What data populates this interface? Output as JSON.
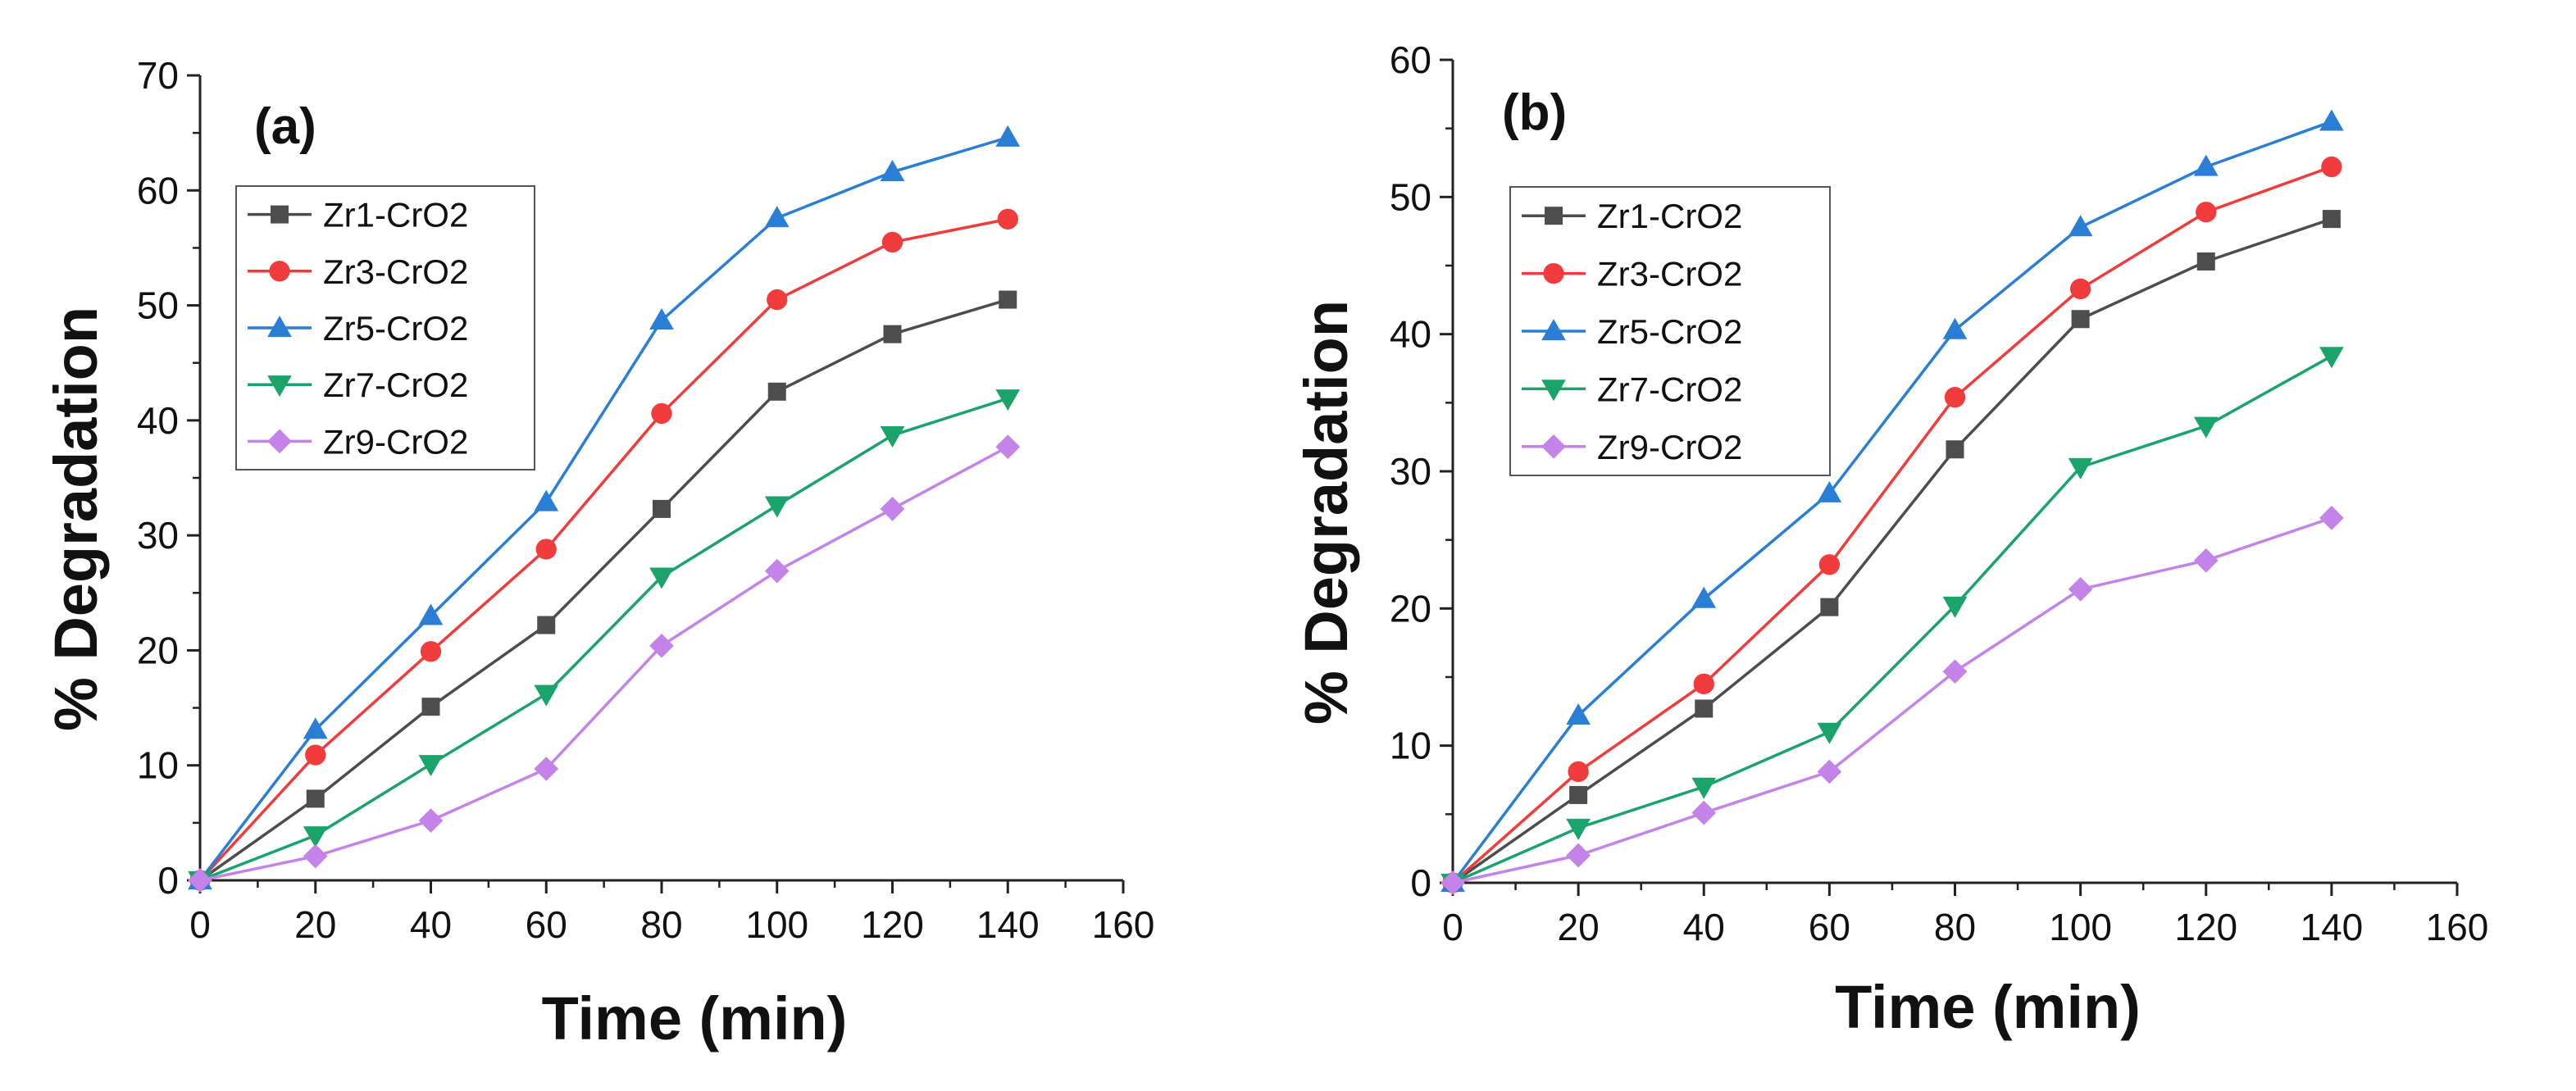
{
  "chart_data": [
    {
      "type": "line",
      "panel_label": "(a)",
      "xlabel": "Time (min)",
      "ylabel": "% Degradation",
      "xlim": [
        0,
        160
      ],
      "ylim": [
        0,
        70
      ],
      "xticks": [
        0,
        20,
        40,
        60,
        80,
        100,
        120,
        140,
        160
      ],
      "yticks": [
        0,
        10,
        20,
        30,
        40,
        50,
        60,
        70
      ],
      "legend_position": "top-left",
      "x": [
        0,
        20,
        40,
        60,
        80,
        100,
        120,
        140
      ],
      "series": [
        {
          "name": "Zr1-CrO2",
          "color": "#4d4d4d",
          "marker": "square",
          "values": [
            0,
            7.1,
            15.1,
            22.2,
            32.3,
            42.5,
            47.5,
            50.5
          ]
        },
        {
          "name": "Zr3-CrO2",
          "color": "#f03c3c",
          "marker": "circle",
          "values": [
            0,
            10.9,
            19.9,
            28.8,
            40.6,
            50.5,
            55.5,
            57.5
          ]
        },
        {
          "name": "Zr5-CrO2",
          "color": "#2a7fd4",
          "marker": "triangle-up",
          "values": [
            0,
            13.1,
            23.0,
            32.9,
            48.7,
            57.6,
            61.6,
            64.6
          ]
        },
        {
          "name": "Zr7-CrO2",
          "color": "#1aa36b",
          "marker": "triangle-down",
          "values": [
            0,
            3.9,
            10.1,
            16.2,
            26.4,
            32.6,
            38.7,
            41.9
          ]
        },
        {
          "name": "Zr9-CrO2",
          "color": "#c383e8",
          "marker": "diamond",
          "values": [
            0,
            2.1,
            5.2,
            9.7,
            20.4,
            26.9,
            32.3,
            37.7
          ]
        }
      ]
    },
    {
      "type": "line",
      "panel_label": "(b)",
      "xlabel": "Time (min)",
      "ylabel": "% Degradation",
      "xlim": [
        0,
        160
      ],
      "ylim": [
        0,
        60
      ],
      "xticks": [
        0,
        20,
        40,
        60,
        80,
        100,
        120,
        140,
        160
      ],
      "yticks": [
        0,
        10,
        20,
        30,
        40,
        50,
        60
      ],
      "legend_position": "top-left",
      "x": [
        0,
        20,
        40,
        60,
        80,
        100,
        120,
        140
      ],
      "series": [
        {
          "name": "Zr1-CrO2",
          "color": "#4d4d4d",
          "marker": "square",
          "values": [
            0,
            6.4,
            12.7,
            20.1,
            31.6,
            41.1,
            45.3,
            48.4
          ]
        },
        {
          "name": "Zr3-CrO2",
          "color": "#f03c3c",
          "marker": "circle",
          "values": [
            0,
            8.1,
            14.5,
            23.2,
            35.4,
            43.3,
            48.9,
            52.2
          ]
        },
        {
          "name": "Zr5-CrO2",
          "color": "#2a7fd4",
          "marker": "triangle-up",
          "values": [
            0,
            12.2,
            20.7,
            28.4,
            40.3,
            47.8,
            52.2,
            55.5
          ]
        },
        {
          "name": "Zr7-CrO2",
          "color": "#1aa36b",
          "marker": "triangle-down",
          "values": [
            0,
            4.0,
            7.0,
            11.0,
            20.2,
            30.3,
            33.3,
            38.4
          ]
        },
        {
          "name": "Zr9-CrO2",
          "color": "#c383e8",
          "marker": "diamond",
          "values": [
            0,
            2.0,
            5.1,
            8.1,
            15.4,
            21.4,
            23.5,
            26.6
          ]
        }
      ]
    }
  ]
}
